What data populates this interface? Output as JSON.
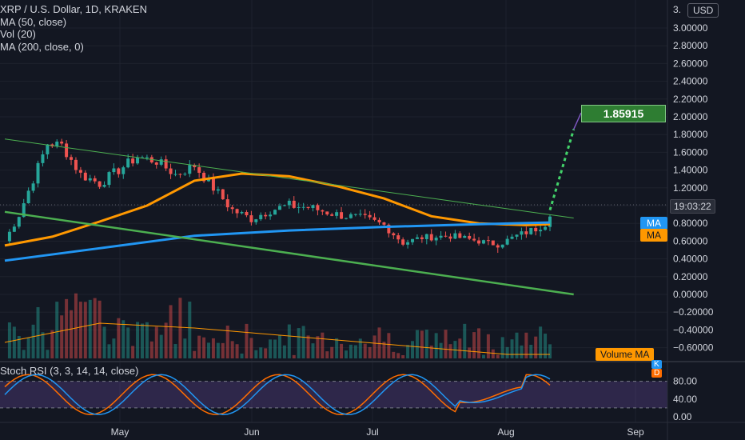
{
  "legend": {
    "title": "XRP / U.S. Dollar, 1D, KRAKEN",
    "indicators": [
      "MA (50, close)",
      "Vol (20)",
      "MA (200, close, 0)"
    ],
    "stoch": "Stoch RSI (3, 3, 14, 14, close)"
  },
  "axis": {
    "currency": "USD",
    "price_badge": "19:03:22",
    "ma_badge_1": "MA",
    "ma_badge_2": "MA",
    "volume_ma_badge": "Volume MA",
    "k_badge": "K",
    "d_badge": "D"
  },
  "annotation": {
    "target": "1.85915"
  },
  "colors": {
    "background": "#131722",
    "up": "#26a69a",
    "down": "#ef5350",
    "ma50": "#ff9800",
    "ma200": "#2196f3",
    "trendline": "#4caf50",
    "stoch_k": "#2196f3",
    "stoch_d": "#ff6d00",
    "stoch_band": "#7e57c2"
  },
  "chart_data": [
    {
      "type": "candlestick",
      "title": "XRP / U.S. Dollar, 1D, KRAKEN",
      "x_ticks": [
        "May",
        "Jun",
        "Jul",
        "Aug",
        "Sep"
      ],
      "y_ticks": [
        "3.",
        "3.00000",
        "2.80000",
        "2.60000",
        "2.40000",
        "2.20000",
        "2.00000",
        "1.80000",
        "1.60000",
        "1.40000",
        "1.20000",
        "1.00000",
        "0.80000",
        "0.60000",
        "0.40000",
        "0.20000",
        "0.00000",
        "−0.20000",
        "−0.40000",
        "−0.60000"
      ],
      "ylim": [
        -0.65,
        3.1
      ],
      "series": [
        {
          "name": "MA (50, close)",
          "x": [
            0,
            10,
            20,
            30,
            40,
            50,
            60,
            70,
            80,
            90,
            100,
            110,
            115
          ],
          "values": [
            0.55,
            0.65,
            0.82,
            1.0,
            1.28,
            1.36,
            1.33,
            1.22,
            1.08,
            0.88,
            0.8,
            0.78,
            0.79
          ]
        },
        {
          "name": "MA (200, close, 0)",
          "x": [
            0,
            20,
            40,
            60,
            80,
            100,
            115
          ],
          "values": [
            0.38,
            0.52,
            0.66,
            0.72,
            0.76,
            0.79,
            0.81
          ]
        },
        {
          "name": "Trendline upper",
          "x": [
            0,
            120
          ],
          "values": [
            1.75,
            0.86
          ]
        },
        {
          "name": "Trendline lower",
          "x": [
            0,
            120
          ],
          "values": [
            0.93,
            0.0
          ]
        },
        {
          "name": "Projection",
          "x": [
            115,
            120
          ],
          "values": [
            0.95,
            1.85915
          ]
        }
      ]
    },
    {
      "type": "line",
      "title": "Stoch RSI (3, 3, 14, 14, close)",
      "y_ticks": [
        "80.00",
        "40.00",
        "0.00"
      ],
      "ylim": [
        0,
        100
      ],
      "band": [
        20,
        80
      ]
    }
  ]
}
